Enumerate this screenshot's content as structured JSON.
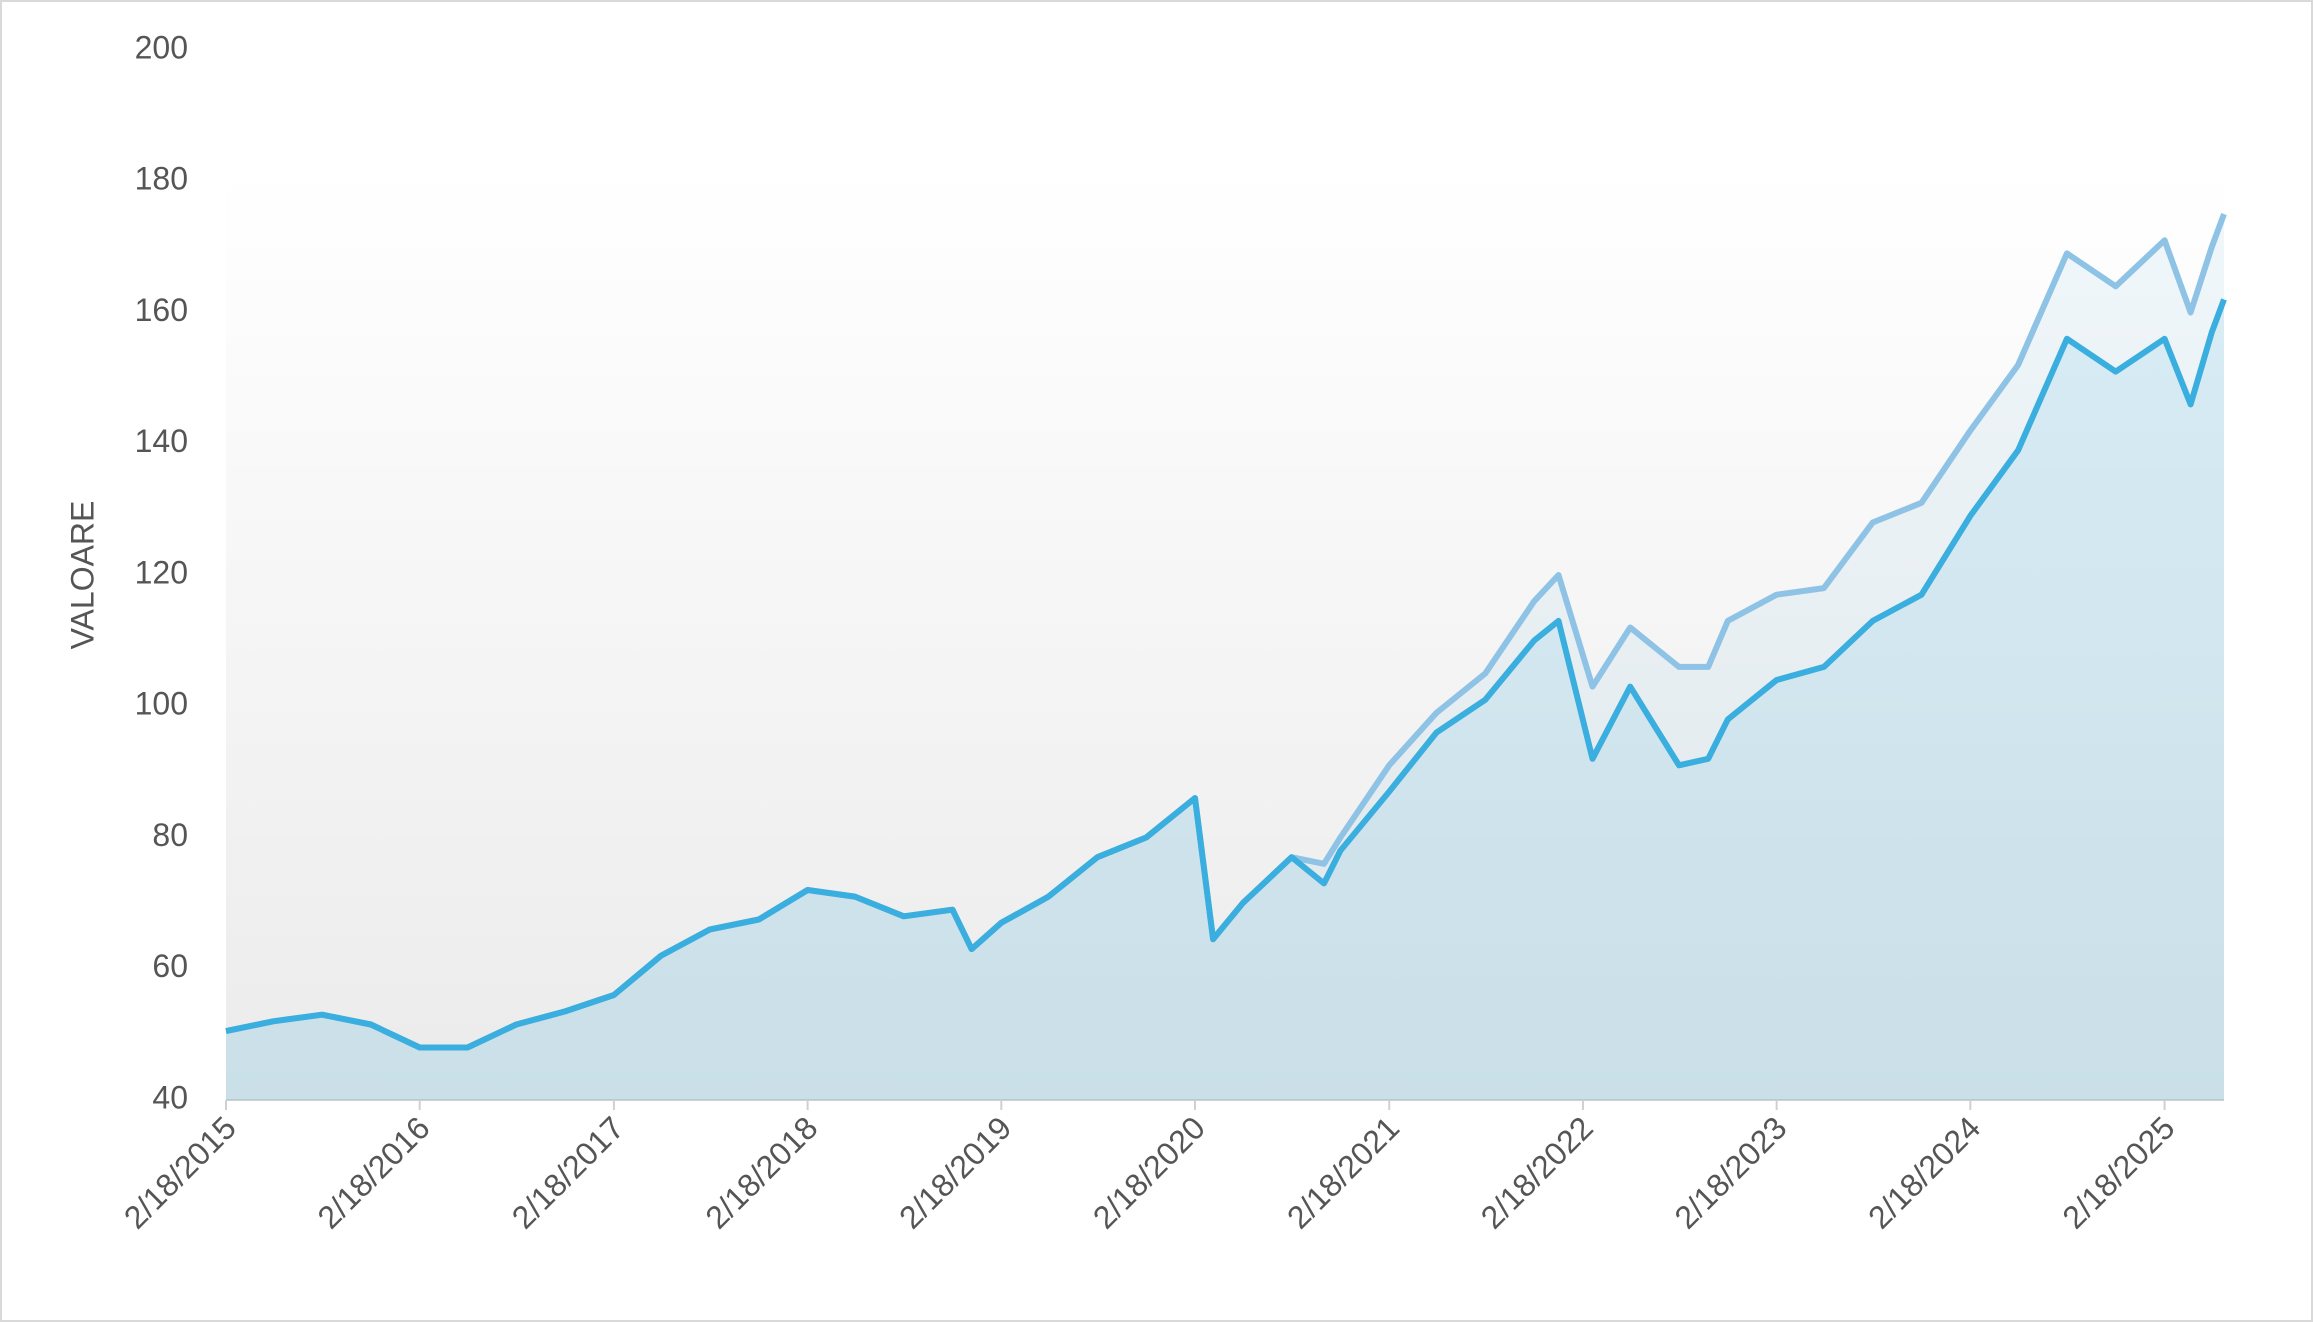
{
  "chart_data": {
    "type": "line",
    "y_label": "VALOARE",
    "x": [
      "2/18/2015",
      "5/18/2015",
      "8/18/2015",
      "11/18/2015",
      "2/18/2016",
      "5/18/2016",
      "8/18/2016",
      "11/18/2016",
      "2/18/2017",
      "5/18/2017",
      "8/18/2017",
      "11/18/2017",
      "2/18/2018",
      "5/18/2018",
      "8/18/2018",
      "11/18/2018",
      "12/24/2018",
      "2/18/2019",
      "5/18/2019",
      "8/18/2019",
      "11/18/2019",
      "2/18/2020",
      "3/23/2020",
      "5/18/2020",
      "8/18/2020",
      "10/18/2020",
      "11/18/2020",
      "2/18/2021",
      "5/18/2021",
      "8/18/2021",
      "11/18/2021",
      "1/3/2022",
      "3/8/2022",
      "5/18/2022",
      "8/18/2022",
      "10/12/2022",
      "11/18/2022",
      "2/18/2023",
      "5/18/2023",
      "8/18/2023",
      "11/18/2023",
      "2/18/2024",
      "5/18/2024",
      "8/18/2024",
      "11/18/2024",
      "2/18/2025",
      "4/8/2025",
      "5/18/2025",
      "6/10/2025"
    ],
    "series": [
      {
        "color": "#8ec3e6",
        "values": [
          50.5,
          52,
          53,
          51.5,
          48,
          48,
          51.5,
          53.5,
          56,
          62,
          66,
          67.5,
          72,
          71,
          68,
          69,
          63,
          67,
          71,
          77,
          80,
          86,
          64.5,
          70,
          77,
          76,
          80,
          91,
          99,
          105,
          116,
          120,
          103,
          112,
          106,
          106,
          113,
          117,
          118,
          128,
          131,
          142,
          152,
          169,
          164,
          171,
          160,
          170,
          175
        ]
      },
      {
        "color": "#3aaede",
        "values": [
          50.5,
          52,
          53,
          51.5,
          48,
          48,
          51.5,
          53.5,
          56,
          62,
          66,
          67.5,
          72,
          71,
          68,
          69,
          63,
          67,
          71,
          77,
          80,
          86,
          64.5,
          70,
          77,
          73,
          78,
          87,
          96,
          101,
          110,
          113,
          92,
          103,
          91,
          92,
          98,
          104,
          106,
          113,
          117,
          129,
          139,
          156,
          151,
          156,
          146,
          157,
          162
        ]
      }
    ],
    "xlim": [
      "2/18/2015",
      "6/10/2025"
    ],
    "xticks": [
      "2/18/2015",
      "2/18/2016",
      "2/18/2017",
      "2/18/2018",
      "2/18/2019",
      "2/18/2020",
      "2/18/2021",
      "2/18/2022",
      "2/18/2023",
      "2/18/2024",
      "2/18/2025"
    ],
    "ylim": [
      40,
      200
    ],
    "yticks": [
      40,
      60,
      80,
      100,
      120,
      140,
      160,
      180,
      200
    ],
    "area": true
  }
}
